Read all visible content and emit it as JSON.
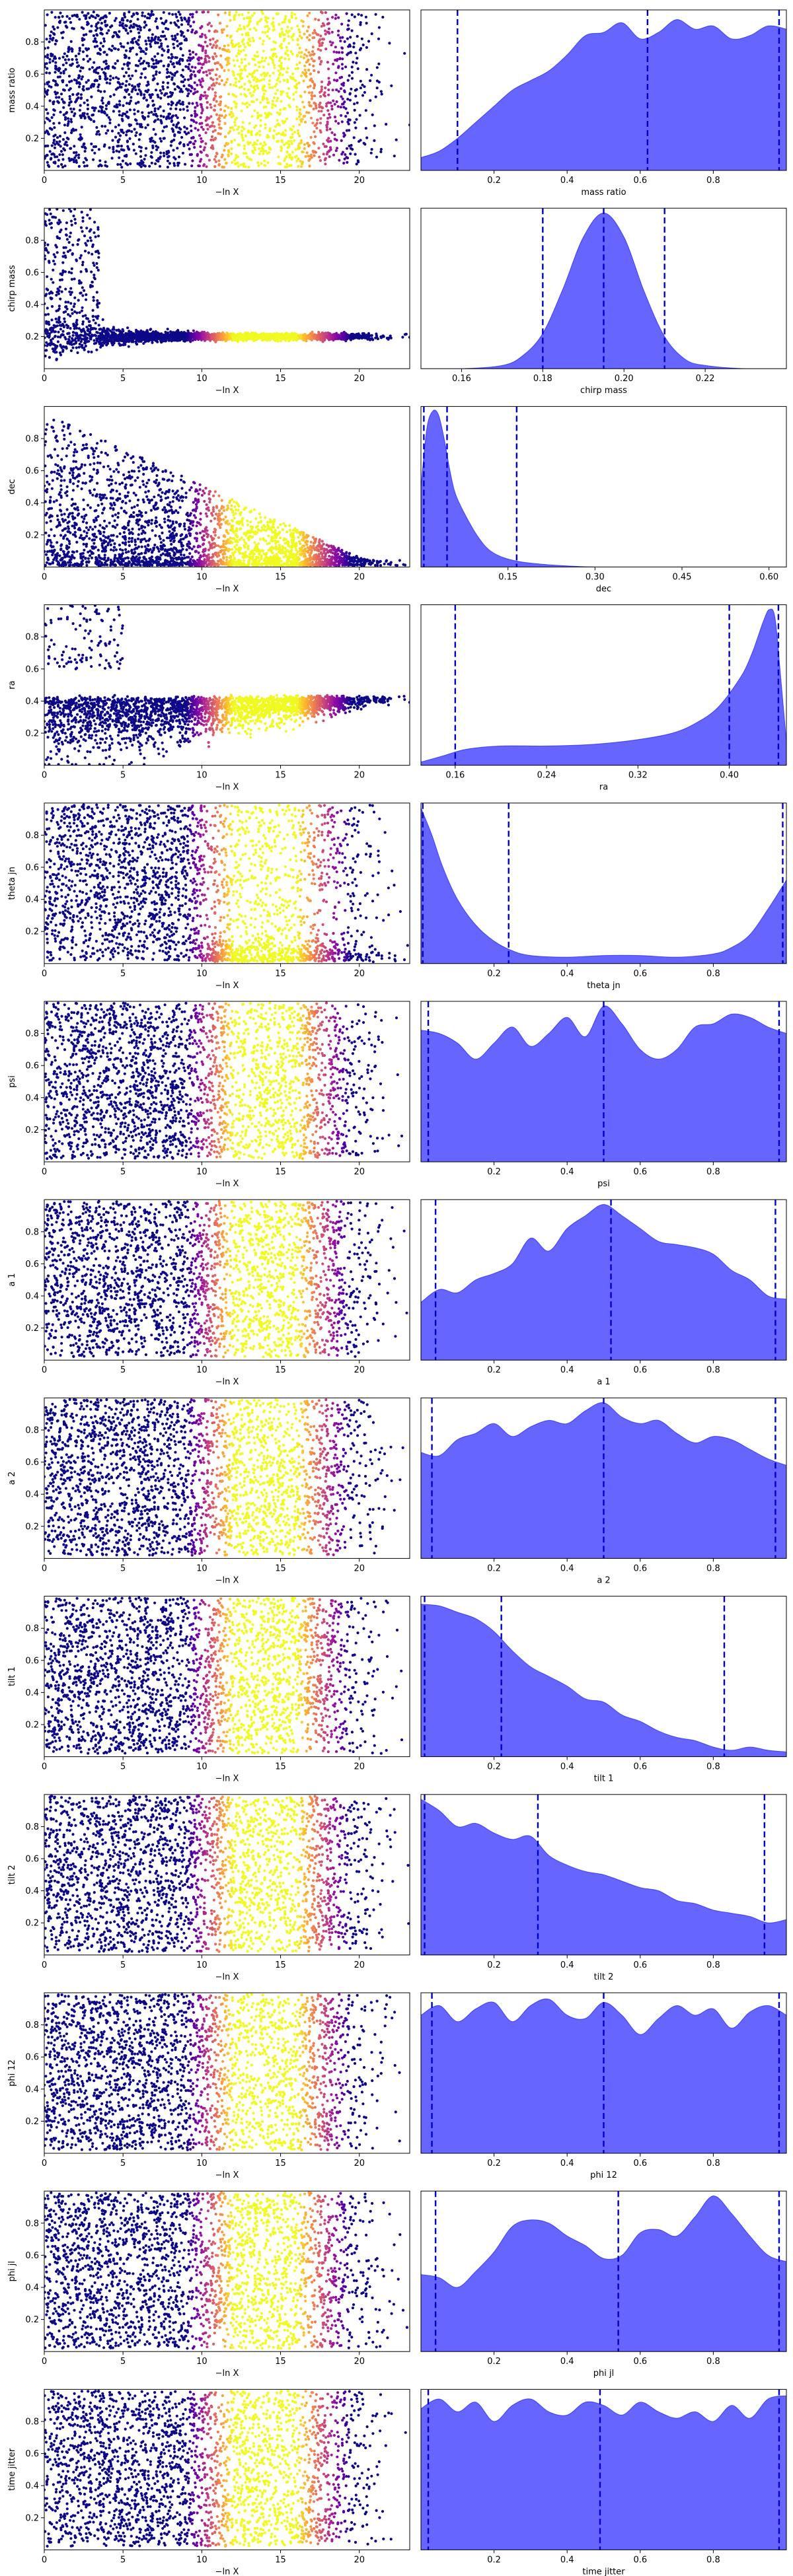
{
  "chart_data": [
    {
      "type": "scatter",
      "name": "mass ratio trace",
      "xlabel": "−ln X",
      "ylabel": "mass ratio",
      "xlim": [
        0,
        23.2
      ],
      "ylim": [
        0.0,
        1.0
      ],
      "xticks": [
        "0",
        "5",
        "10",
        "15",
        "20"
      ],
      "yticks": [
        "0.2",
        "0.4",
        "0.6",
        "0.8"
      ],
      "yticks_values": [
        0.2,
        0.4,
        0.6,
        0.8
      ],
      "profile": "uniform",
      "colormap": "plasma"
    },
    {
      "type": "area",
      "name": "mass ratio posterior",
      "xlabel": "mass ratio",
      "xlim": [
        0.0,
        1.0
      ],
      "xticks": [
        "0.2",
        "0.4",
        "0.6",
        "0.8"
      ],
      "xticks_values": [
        0.2,
        0.4,
        0.6,
        0.8
      ],
      "quantiles": [
        0.1,
        0.62,
        0.98
      ],
      "color": "#0000ff",
      "x": [
        0.0,
        0.05,
        0.1,
        0.15,
        0.2,
        0.25,
        0.3,
        0.35,
        0.4,
        0.45,
        0.5,
        0.55,
        0.6,
        0.65,
        0.7,
        0.75,
        0.8,
        0.85,
        0.9,
        0.95,
        1.0
      ],
      "density": [
        0.08,
        0.12,
        0.2,
        0.3,
        0.4,
        0.5,
        0.56,
        0.62,
        0.72,
        0.84,
        0.86,
        0.92,
        0.82,
        0.86,
        0.94,
        0.88,
        0.9,
        0.82,
        0.84,
        0.9,
        0.88
      ]
    },
    {
      "type": "scatter",
      "name": "chirp mass trace",
      "xlabel": "−ln X",
      "ylabel": "chirp mass",
      "xlim": [
        0,
        23.2
      ],
      "ylim": [
        0.0,
        1.0
      ],
      "xticks": [
        "0",
        "5",
        "10",
        "15",
        "20"
      ],
      "yticks": [
        "0.2",
        "0.4",
        "0.6",
        "0.8"
      ],
      "yticks_values": [
        0.2,
        0.4,
        0.6,
        0.8
      ],
      "profile": "converge",
      "center": 0.2,
      "colormap": "plasma"
    },
    {
      "type": "area",
      "name": "chirp mass posterior",
      "xlabel": "chirp mass",
      "xlim": [
        0.15,
        0.24
      ],
      "xticks": [
        "0.16",
        "0.18",
        "0.20",
        "0.22"
      ],
      "xticks_values": [
        0.16,
        0.18,
        0.2,
        0.22
      ],
      "quantiles": [
        0.18,
        0.195,
        0.21
      ],
      "color": "#0000ff",
      "x": [
        0.15,
        0.16,
        0.17,
        0.175,
        0.18,
        0.185,
        0.19,
        0.195,
        0.2,
        0.205,
        0.21,
        0.215,
        0.22,
        0.23,
        0.24
      ],
      "density": [
        0.0,
        0.0,
        0.02,
        0.08,
        0.22,
        0.5,
        0.82,
        0.97,
        0.82,
        0.48,
        0.2,
        0.06,
        0.02,
        0.0,
        0.0
      ]
    },
    {
      "type": "scatter",
      "name": "dec trace",
      "xlabel": "−ln X",
      "ylabel": "dec",
      "xlim": [
        0,
        23.2
      ],
      "ylim": [
        0.0,
        1.0
      ],
      "xticks": [
        "0",
        "5",
        "10",
        "15",
        "20"
      ],
      "yticks": [
        "0.2",
        "0.4",
        "0.6",
        "0.8"
      ],
      "yticks_values": [
        0.2,
        0.4,
        0.6,
        0.8
      ],
      "profile": "wedge",
      "center": 0.05,
      "colormap": "plasma"
    },
    {
      "type": "area",
      "name": "dec posterior",
      "xlabel": "dec",
      "xlim": [
        0.0,
        0.63
      ],
      "xticks": [
        "0.15",
        "0.30",
        "0.45",
        "0.60"
      ],
      "xticks_values": [
        0.15,
        0.3,
        0.45,
        0.6
      ],
      "quantiles": [
        0.005,
        0.045,
        0.165
      ],
      "color": "#0000ff",
      "x": [
        0.0,
        0.01,
        0.02,
        0.03,
        0.04,
        0.05,
        0.06,
        0.08,
        0.1,
        0.12,
        0.15,
        0.2,
        0.3,
        0.4,
        0.63
      ],
      "density": [
        0.5,
        0.86,
        0.97,
        0.95,
        0.8,
        0.6,
        0.45,
        0.3,
        0.18,
        0.1,
        0.05,
        0.02,
        0.0,
        0.0,
        0.0
      ]
    },
    {
      "type": "scatter",
      "name": "ra trace",
      "xlabel": "−ln X",
      "ylabel": "ra",
      "xlim": [
        0,
        23.2
      ],
      "ylim": [
        0.0,
        1.0
      ],
      "xticks": [
        "0",
        "5",
        "10",
        "15",
        "20"
      ],
      "yticks": [
        "0.2",
        "0.4",
        "0.6",
        "0.8"
      ],
      "yticks_values": [
        0.2,
        0.4,
        0.6,
        0.8
      ],
      "profile": "ra",
      "center": 0.42,
      "colormap": "plasma"
    },
    {
      "type": "area",
      "name": "ra posterior",
      "xlabel": "ra",
      "xlim": [
        0.13,
        0.45
      ],
      "xticks": [
        "0.16",
        "0.24",
        "0.32",
        "0.40"
      ],
      "xticks_values": [
        0.16,
        0.24,
        0.32,
        0.4
      ],
      "quantiles": [
        0.16,
        0.4,
        0.443
      ],
      "color": "#0000ff",
      "x": [
        0.13,
        0.15,
        0.17,
        0.2,
        0.24,
        0.28,
        0.32,
        0.35,
        0.37,
        0.39,
        0.41,
        0.42,
        0.43,
        0.435,
        0.44,
        0.445,
        0.45
      ],
      "density": [
        0.02,
        0.06,
        0.1,
        0.12,
        0.12,
        0.13,
        0.16,
        0.2,
        0.26,
        0.36,
        0.55,
        0.7,
        0.9,
        0.97,
        0.92,
        0.55,
        0.15
      ]
    },
    {
      "type": "scatter",
      "name": "theta jn trace",
      "xlabel": "−ln X",
      "ylabel": "theta jn",
      "xlim": [
        0,
        23.2
      ],
      "ylim": [
        0.0,
        1.0
      ],
      "xticks": [
        "0",
        "5",
        "10",
        "15",
        "20"
      ],
      "yticks": [
        "0.2",
        "0.4",
        "0.6",
        "0.8"
      ],
      "yticks_values": [
        0.2,
        0.4,
        0.6,
        0.8
      ],
      "profile": "edges",
      "colormap": "plasma"
    },
    {
      "type": "area",
      "name": "theta jn posterior",
      "xlabel": "theta jn",
      "xlim": [
        0.0,
        1.0
      ],
      "xticks": [
        "0.2",
        "0.4",
        "0.6",
        "0.8"
      ],
      "xticks_values": [
        0.2,
        0.4,
        0.6,
        0.8
      ],
      "quantiles": [
        0.005,
        0.24,
        0.99
      ],
      "color": "#0000ff",
      "x": [
        0.0,
        0.03,
        0.06,
        0.1,
        0.15,
        0.2,
        0.25,
        0.3,
        0.4,
        0.5,
        0.6,
        0.7,
        0.8,
        0.85,
        0.9,
        0.95,
        1.0
      ],
      "density": [
        0.97,
        0.8,
        0.6,
        0.4,
        0.24,
        0.14,
        0.08,
        0.05,
        0.04,
        0.05,
        0.05,
        0.04,
        0.06,
        0.1,
        0.18,
        0.34,
        0.52
      ]
    },
    {
      "type": "scatter",
      "name": "psi trace",
      "xlabel": "−ln X",
      "ylabel": "psi",
      "xlim": [
        0,
        23.2
      ],
      "ylim": [
        0.0,
        1.0
      ],
      "xticks": [
        "0",
        "5",
        "10",
        "15",
        "20"
      ],
      "yticks": [
        "0.2",
        "0.4",
        "0.6",
        "0.8"
      ],
      "yticks_values": [
        0.2,
        0.4,
        0.6,
        0.8
      ],
      "profile": "uniform",
      "colormap": "plasma"
    },
    {
      "type": "area",
      "name": "psi posterior",
      "xlabel": "psi",
      "xlim": [
        0.0,
        1.0
      ],
      "xticks": [
        "0.2",
        "0.4",
        "0.6",
        "0.8"
      ],
      "xticks_values": [
        0.2,
        0.4,
        0.6,
        0.8
      ],
      "quantiles": [
        0.02,
        0.5,
        0.98
      ],
      "color": "#0000ff",
      "x": [
        0.0,
        0.05,
        0.1,
        0.15,
        0.2,
        0.25,
        0.3,
        0.35,
        0.4,
        0.45,
        0.5,
        0.55,
        0.6,
        0.65,
        0.7,
        0.75,
        0.8,
        0.85,
        0.9,
        0.95,
        1.0
      ],
      "density": [
        0.82,
        0.8,
        0.74,
        0.64,
        0.74,
        0.84,
        0.72,
        0.8,
        0.9,
        0.78,
        0.97,
        0.86,
        0.7,
        0.64,
        0.7,
        0.84,
        0.86,
        0.92,
        0.9,
        0.84,
        0.8
      ]
    },
    {
      "type": "scatter",
      "name": "a 1 trace",
      "xlabel": "−ln X",
      "ylabel": "a 1",
      "xlim": [
        0,
        23.2
      ],
      "ylim": [
        0.0,
        1.0
      ],
      "xticks": [
        "0",
        "5",
        "10",
        "15",
        "20"
      ],
      "yticks": [
        "0.2",
        "0.4",
        "0.6",
        "0.8"
      ],
      "yticks_values": [
        0.2,
        0.4,
        0.6,
        0.8
      ],
      "profile": "uniform",
      "colormap": "plasma"
    },
    {
      "type": "area",
      "name": "a 1 posterior",
      "xlabel": "a 1",
      "xlim": [
        0.0,
        1.0
      ],
      "xticks": [
        "0.2",
        "0.4",
        "0.6",
        "0.8"
      ],
      "xticks_values": [
        0.2,
        0.4,
        0.6,
        0.8
      ],
      "quantiles": [
        0.04,
        0.52,
        0.97
      ],
      "color": "#0000ff",
      "x": [
        0.0,
        0.05,
        0.1,
        0.15,
        0.2,
        0.25,
        0.3,
        0.35,
        0.4,
        0.45,
        0.5,
        0.55,
        0.6,
        0.65,
        0.7,
        0.75,
        0.8,
        0.85,
        0.9,
        0.95,
        1.0
      ],
      "density": [
        0.36,
        0.44,
        0.42,
        0.5,
        0.54,
        0.6,
        0.76,
        0.68,
        0.82,
        0.9,
        0.97,
        0.9,
        0.82,
        0.74,
        0.72,
        0.7,
        0.66,
        0.56,
        0.5,
        0.4,
        0.38
      ]
    },
    {
      "type": "scatter",
      "name": "a 2 trace",
      "xlabel": "−ln X",
      "ylabel": "a 2",
      "xlim": [
        0,
        23.2
      ],
      "ylim": [
        0.0,
        1.0
      ],
      "xticks": [
        "0",
        "5",
        "10",
        "15",
        "20"
      ],
      "yticks": [
        "0.2",
        "0.4",
        "0.6",
        "0.8"
      ],
      "yticks_values": [
        0.2,
        0.4,
        0.6,
        0.8
      ],
      "profile": "uniform",
      "colormap": "plasma"
    },
    {
      "type": "area",
      "name": "a 2 posterior",
      "xlabel": "a 2",
      "xlim": [
        0.0,
        1.0
      ],
      "xticks": [
        "0.2",
        "0.4",
        "0.6",
        "0.8"
      ],
      "xticks_values": [
        0.2,
        0.4,
        0.6,
        0.8
      ],
      "quantiles": [
        0.03,
        0.5,
        0.97
      ],
      "color": "#0000ff",
      "x": [
        0.0,
        0.05,
        0.1,
        0.15,
        0.2,
        0.25,
        0.3,
        0.35,
        0.4,
        0.45,
        0.5,
        0.55,
        0.6,
        0.65,
        0.7,
        0.75,
        0.8,
        0.85,
        0.9,
        0.95,
        1.0
      ],
      "density": [
        0.66,
        0.64,
        0.74,
        0.78,
        0.84,
        0.76,
        0.82,
        0.86,
        0.84,
        0.92,
        0.97,
        0.88,
        0.84,
        0.86,
        0.78,
        0.72,
        0.76,
        0.74,
        0.68,
        0.62,
        0.58
      ]
    },
    {
      "type": "scatter",
      "name": "tilt 1 trace",
      "xlabel": "−ln X",
      "ylabel": "tilt 1",
      "xlim": [
        0,
        23.2
      ],
      "ylim": [
        0.0,
        1.0
      ],
      "xticks": [
        "0",
        "5",
        "10",
        "15",
        "20"
      ],
      "yticks": [
        "0.2",
        "0.4",
        "0.6",
        "0.8"
      ],
      "yticks_values": [
        0.2,
        0.4,
        0.6,
        0.8
      ],
      "profile": "uniform",
      "colormap": "plasma"
    },
    {
      "type": "area",
      "name": "tilt 1 posterior",
      "xlabel": "tilt 1",
      "xlim": [
        0.0,
        1.0
      ],
      "xticks": [
        "0.2",
        "0.4",
        "0.6",
        "0.8"
      ],
      "xticks_values": [
        0.2,
        0.4,
        0.6,
        0.8
      ],
      "quantiles": [
        0.01,
        0.22,
        0.83
      ],
      "color": "#0000ff",
      "x": [
        0.0,
        0.05,
        0.1,
        0.15,
        0.2,
        0.25,
        0.3,
        0.35,
        0.4,
        0.45,
        0.5,
        0.55,
        0.6,
        0.65,
        0.7,
        0.75,
        0.8,
        0.85,
        0.9,
        0.95,
        1.0
      ],
      "density": [
        0.95,
        0.94,
        0.9,
        0.86,
        0.78,
        0.66,
        0.56,
        0.5,
        0.44,
        0.36,
        0.34,
        0.26,
        0.22,
        0.16,
        0.12,
        0.1,
        0.06,
        0.04,
        0.06,
        0.04,
        0.03
      ]
    },
    {
      "type": "scatter",
      "name": "tilt 2 trace",
      "xlabel": "−ln X",
      "ylabel": "tilt 2",
      "xlim": [
        0,
        23.2
      ],
      "ylim": [
        0.0,
        1.0
      ],
      "xticks": [
        "0",
        "5",
        "10",
        "15",
        "20"
      ],
      "yticks": [
        "0.2",
        "0.4",
        "0.6",
        "0.8"
      ],
      "yticks_values": [
        0.2,
        0.4,
        0.6,
        0.8
      ],
      "profile": "uniform",
      "colormap": "plasma"
    },
    {
      "type": "area",
      "name": "tilt 2 posterior",
      "xlabel": "tilt 2",
      "xlim": [
        0.0,
        1.0
      ],
      "xticks": [
        "0.2",
        "0.4",
        "0.6",
        "0.8"
      ],
      "xticks_values": [
        0.2,
        0.4,
        0.6,
        0.8
      ],
      "quantiles": [
        0.01,
        0.32,
        0.94
      ],
      "color": "#0000ff",
      "x": [
        0.0,
        0.05,
        0.1,
        0.15,
        0.2,
        0.25,
        0.3,
        0.35,
        0.4,
        0.45,
        0.5,
        0.55,
        0.6,
        0.65,
        0.7,
        0.75,
        0.8,
        0.85,
        0.9,
        0.95,
        1.0
      ],
      "density": [
        0.97,
        0.9,
        0.8,
        0.82,
        0.76,
        0.72,
        0.74,
        0.62,
        0.56,
        0.52,
        0.5,
        0.46,
        0.42,
        0.4,
        0.34,
        0.32,
        0.28,
        0.26,
        0.24,
        0.2,
        0.22
      ]
    },
    {
      "type": "scatter",
      "name": "phi 12 trace",
      "xlabel": "−ln X",
      "ylabel": "phi 12",
      "xlim": [
        0,
        23.2
      ],
      "ylim": [
        0.0,
        1.0
      ],
      "xticks": [
        "0",
        "5",
        "10",
        "15",
        "20"
      ],
      "yticks": [
        "0.2",
        "0.4",
        "0.6",
        "0.8"
      ],
      "yticks_values": [
        0.2,
        0.4,
        0.6,
        0.8
      ],
      "profile": "uniform",
      "colormap": "plasma"
    },
    {
      "type": "area",
      "name": "phi 12 posterior",
      "xlabel": "phi 12",
      "xlim": [
        0.0,
        1.0
      ],
      "xticks": [
        "0.2",
        "0.4",
        "0.6",
        "0.8"
      ],
      "xticks_values": [
        0.2,
        0.4,
        0.6,
        0.8
      ],
      "quantiles": [
        0.03,
        0.5,
        0.98
      ],
      "color": "#0000ff",
      "x": [
        0.0,
        0.05,
        0.1,
        0.15,
        0.2,
        0.25,
        0.3,
        0.35,
        0.4,
        0.45,
        0.5,
        0.55,
        0.6,
        0.65,
        0.7,
        0.75,
        0.8,
        0.85,
        0.9,
        0.95,
        1.0
      ],
      "density": [
        0.86,
        0.92,
        0.82,
        0.9,
        0.94,
        0.82,
        0.92,
        0.96,
        0.86,
        0.84,
        0.94,
        0.86,
        0.74,
        0.84,
        0.92,
        0.86,
        0.9,
        0.78,
        0.88,
        0.92,
        0.86
      ]
    },
    {
      "type": "scatter",
      "name": "phi jl trace",
      "xlabel": "−ln X",
      "ylabel": "phi jl",
      "xlim": [
        0,
        23.2
      ],
      "ylim": [
        0.0,
        1.0
      ],
      "xticks": [
        "0",
        "5",
        "10",
        "15",
        "20"
      ],
      "yticks": [
        "0.2",
        "0.4",
        "0.6",
        "0.8"
      ],
      "yticks_values": [
        0.2,
        0.4,
        0.6,
        0.8
      ],
      "profile": "uniform",
      "colormap": "plasma"
    },
    {
      "type": "area",
      "name": "phi jl posterior",
      "xlabel": "phi jl",
      "xlim": [
        0.0,
        1.0
      ],
      "xticks": [
        "0.2",
        "0.4",
        "0.6",
        "0.8"
      ],
      "xticks_values": [
        0.2,
        0.4,
        0.6,
        0.8
      ],
      "quantiles": [
        0.04,
        0.54,
        0.98
      ],
      "color": "#0000ff",
      "x": [
        0.0,
        0.05,
        0.1,
        0.15,
        0.2,
        0.25,
        0.3,
        0.35,
        0.4,
        0.45,
        0.5,
        0.55,
        0.6,
        0.65,
        0.7,
        0.75,
        0.8,
        0.85,
        0.9,
        0.95,
        1.0
      ],
      "density": [
        0.48,
        0.46,
        0.4,
        0.5,
        0.62,
        0.78,
        0.82,
        0.8,
        0.72,
        0.66,
        0.58,
        0.6,
        0.74,
        0.76,
        0.72,
        0.84,
        0.97,
        0.86,
        0.72,
        0.6,
        0.56
      ]
    },
    {
      "type": "scatter",
      "name": "time jitter trace",
      "xlabel": "−ln X",
      "ylabel": "time jitter",
      "xlim": [
        0,
        23.2
      ],
      "ylim": [
        0.0,
        1.0
      ],
      "xticks": [
        "0",
        "5",
        "10",
        "15",
        "20"
      ],
      "yticks": [
        "0.2",
        "0.4",
        "0.6",
        "0.8"
      ],
      "yticks_values": [
        0.2,
        0.4,
        0.6,
        0.8
      ],
      "profile": "uniform",
      "colormap": "plasma"
    },
    {
      "type": "area",
      "name": "time jitter posterior",
      "xlabel": "time jitter",
      "xlim": [
        0.0,
        1.0
      ],
      "xticks": [
        "0.2",
        "0.4",
        "0.6",
        "0.8"
      ],
      "xticks_values": [
        0.2,
        0.4,
        0.6,
        0.8
      ],
      "quantiles": [
        0.02,
        0.49,
        0.98
      ],
      "color": "#0000ff",
      "x": [
        0.0,
        0.05,
        0.1,
        0.15,
        0.2,
        0.25,
        0.3,
        0.35,
        0.4,
        0.45,
        0.5,
        0.55,
        0.6,
        0.65,
        0.7,
        0.75,
        0.8,
        0.85,
        0.9,
        0.95,
        1.0
      ],
      "density": [
        0.88,
        0.94,
        0.86,
        0.92,
        0.8,
        0.9,
        0.94,
        0.86,
        0.84,
        0.92,
        0.9,
        0.84,
        0.92,
        0.86,
        0.82,
        0.86,
        0.8,
        0.9,
        0.82,
        0.94,
        0.96
      ]
    }
  ]
}
